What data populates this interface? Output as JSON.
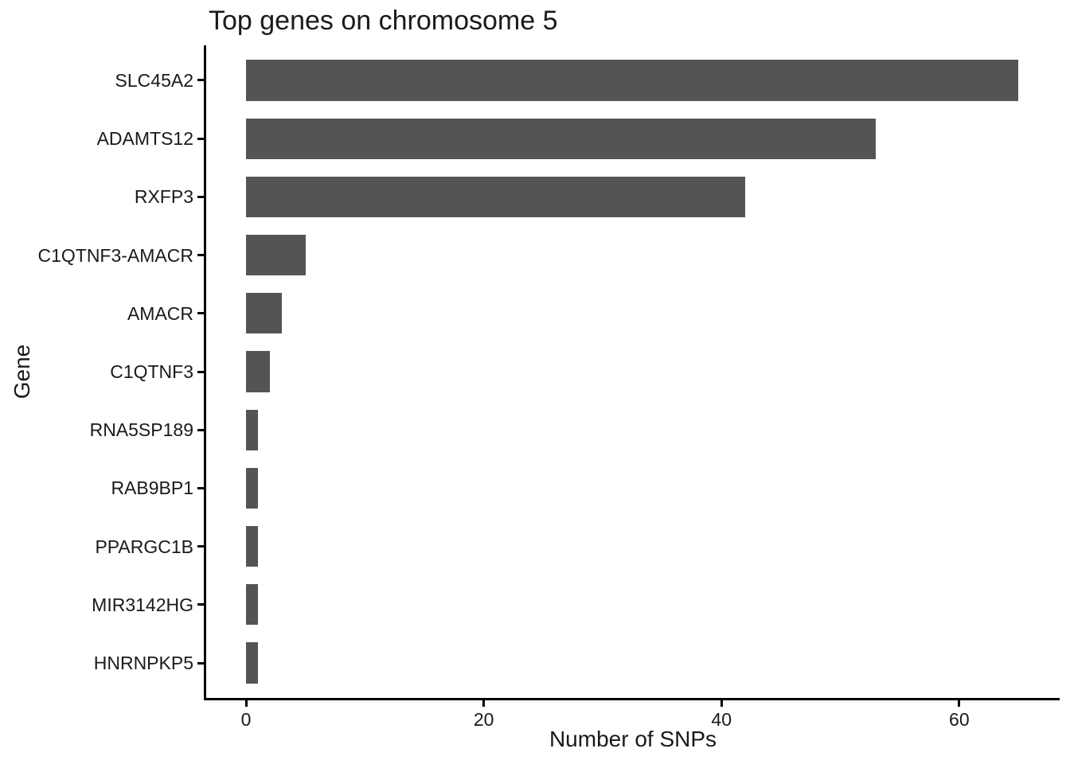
{
  "page": {
    "background": "#ffffff"
  },
  "chart_data": {
    "type": "bar",
    "orientation": "horizontal",
    "title": "Top genes on chromosome 5",
    "xlabel": "Number of SNPs",
    "ylabel": "Gene",
    "categories": [
      "SLC45A2",
      "ADAMTS12",
      "RXFP3",
      "C1QTNF3-AMACR",
      "AMACR",
      "C1QTNF3",
      "RNA5SP189",
      "RAB9BP1",
      "PPARGC1B",
      "MIR3142HG",
      "HNRNPKP5"
    ],
    "values": [
      65,
      53,
      42,
      5,
      3,
      2,
      1,
      1,
      1,
      1,
      1
    ],
    "x_ticks": [
      0,
      20,
      40,
      60
    ],
    "xlim": [
      -3.35,
      68.45
    ],
    "grid": false,
    "legend": "none",
    "bar_color": "#545454",
    "axis_color": "#000000",
    "text_color": "#1a1a1a"
  }
}
